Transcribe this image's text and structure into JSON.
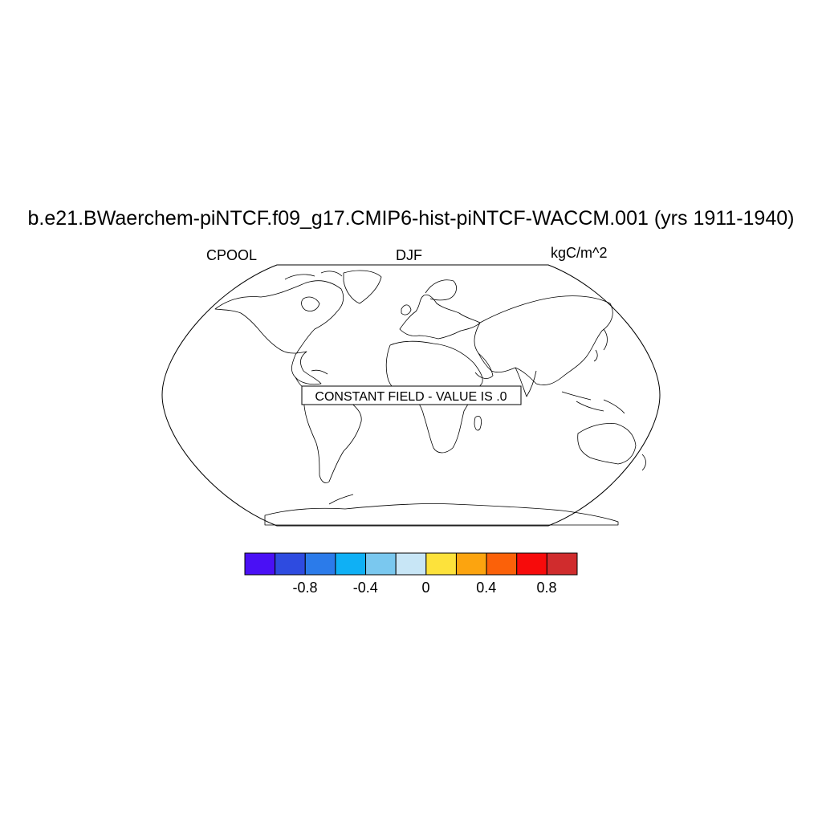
{
  "title": "b.e21.BWaerchem-piNTCF.f09_g17.CMIP6-hist-piNTCF-WACCM.001 (yrs 1911-1940)",
  "left_string": "CPOOL",
  "center_string": "DJF",
  "right_string": "kgC/m^2",
  "constant_field_label": "CONSTANT FIELD - VALUE IS .0",
  "map": {
    "projection": "Robinson",
    "basemap": "world coastlines"
  },
  "colorbar": {
    "colors": [
      "#4a10f5",
      "#2e4be0",
      "#2b7bea",
      "#0fb0f5",
      "#7ac8ef",
      "#c8e6f6",
      "#fde23b",
      "#fca40f",
      "#fb6109",
      "#f70b0b",
      "#d02c2d"
    ],
    "tick_labels": [
      "-0.8",
      "-0.4",
      "0",
      "0.4",
      "0.8"
    ],
    "tick_values": [
      -0.8,
      -0.4,
      0,
      0.4,
      0.8
    ],
    "boundaries": [
      -1.0,
      -0.8,
      -0.6,
      -0.4,
      -0.2,
      0.0,
      0.2,
      0.4,
      0.6,
      0.8,
      1.0
    ]
  }
}
